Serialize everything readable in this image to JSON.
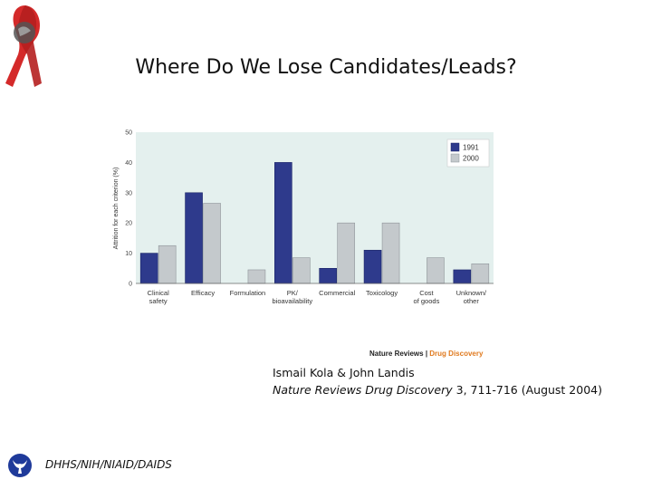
{
  "slide": {
    "title": "Where Do We Lose Candidates/Leads?",
    "credit_prefix": "Nature Reviews",
    "credit_sep": " | ",
    "credit_brand": "Drug Discovery",
    "citation_authors": "Ismail Kola & John Landis",
    "citation_journal": "Nature Reviews Drug Discovery",
    "citation_rest": " 3, 711-716 (August 2004)",
    "agency": "DHHS/NIH/NIAID/DAIDS"
  },
  "colors": {
    "series_1991": "#2e3a8c",
    "series_2000": "#c4c9cc",
    "plot_bg": "#e4f0ee",
    "ribbon": "#d42a2a",
    "logo": "#1f3a9a"
  },
  "chart_data": {
    "type": "bar",
    "ylabel": "Attrition for each criterion (%)",
    "ylim": [
      0,
      50
    ],
    "yticks": [
      "0",
      "10",
      "20",
      "30",
      "40",
      "50"
    ],
    "categories": [
      [
        "Clinical",
        "safety"
      ],
      [
        "Efficacy"
      ],
      [
        "Formulation"
      ],
      [
        "PK/",
        "bioavailability"
      ],
      [
        "Commercial"
      ],
      [
        "Toxicology"
      ],
      [
        "Cost",
        "of goods"
      ],
      [
        "Unknown/",
        "other"
      ]
    ],
    "series": [
      {
        "name": "1991",
        "values": [
          10,
          30,
          0,
          40,
          5,
          11,
          0,
          4.5
        ]
      },
      {
        "name": "2000",
        "values": [
          12.5,
          26.5,
          4.5,
          8.5,
          20,
          20,
          8.5,
          6.5
        ]
      }
    ],
    "legend_position": "top-right",
    "grid": false
  }
}
